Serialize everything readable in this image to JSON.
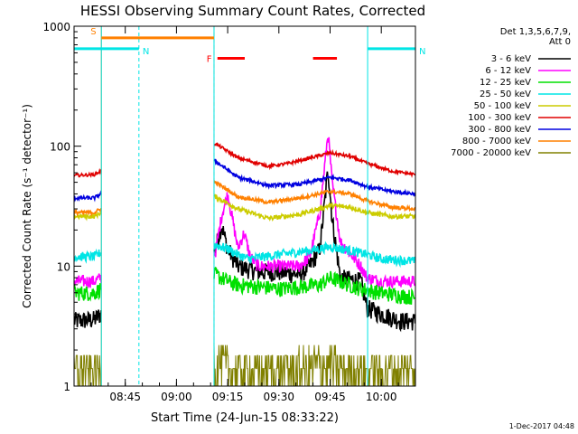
{
  "chart_data": {
    "type": "line",
    "title": "HESSI Observing Summary Count Rates, Corrected",
    "xlabel": "Start Time (24-Jun-15 08:33:22)",
    "ylabel": "Corrected Count Rate (s⁻¹ detector⁻¹)",
    "y_scale": "log",
    "ylim": [
      1,
      1000
    ],
    "xlim_minutes": [
      8.5,
      10.1667
    ],
    "x_ticks": [
      {
        "label": "08:45",
        "value": 8.75
      },
      {
        "label": "09:00",
        "value": 9.0
      },
      {
        "label": "09:15",
        "value": 9.25
      },
      {
        "label": "09:30",
        "value": 9.5
      },
      {
        "label": "09:45",
        "value": 9.75
      },
      {
        "label": "10:00",
        "value": 10.0
      }
    ],
    "y_ticks": [
      {
        "label": "1000",
        "value": 1000
      },
      {
        "label": "100",
        "value": 100
      },
      {
        "label": "10",
        "value": 10
      },
      {
        "label": "1",
        "value": 1
      }
    ],
    "legend": {
      "header": [
        "Det 1,3,5,6,7,9,",
        "Att 0"
      ],
      "placement": "right"
    },
    "flags": [
      {
        "label": "S",
        "color": "#ff8000",
        "level": 800,
        "x_start": 8.6333,
        "x_end": 9.1833
      },
      {
        "label": "N",
        "color": "#00e5e5",
        "level": 650,
        "x_start": 8.5,
        "x_end": 8.8167
      },
      {
        "label": "N",
        "color": "#00e5e5",
        "level": 650,
        "x_start": 9.9333,
        "x_end": 10.1667
      },
      {
        "label": "F",
        "color": "#ff0000",
        "level": 540,
        "x_start": 9.2,
        "x_end": 9.3333
      },
      {
        "label": "",
        "color": "#ff0000",
        "level": 540,
        "x_start": 9.6667,
        "x_end": 9.7833
      }
    ],
    "vertical_markers": [
      {
        "x": 8.6333,
        "color": "#ff8000",
        "style": "solid"
      },
      {
        "x": 8.6333,
        "color": "#00e5e5",
        "style": "solid"
      },
      {
        "x": 8.8167,
        "color": "#00e5e5",
        "style": "dashed"
      },
      {
        "x": 9.1833,
        "color": "#ff8000",
        "style": "dashed"
      },
      {
        "x": 9.1833,
        "color": "#00e5e5",
        "style": "solid"
      },
      {
        "x": 9.9333,
        "color": "#00e5e5",
        "style": "solid"
      },
      {
        "x": 10.1667,
        "color": "#00e5e5",
        "style": "dashed"
      }
    ],
    "gaps": [
      [
        8.6333,
        9.1833
      ]
    ],
    "series": [
      {
        "name": "3 - 6 keV",
        "color": "#000000",
        "noise": 0.06,
        "x": [
          8.5,
          8.6,
          8.63,
          9.19,
          9.22,
          9.25,
          9.3,
          9.35,
          9.4,
          9.5,
          9.6,
          9.65,
          9.7,
          9.72,
          9.74,
          9.76,
          9.8,
          9.9,
          9.93,
          10.0,
          10.1,
          10.1667
        ],
        "y": [
          3.5,
          3.6,
          4.0,
          14,
          22,
          14,
          10,
          9.5,
          9.0,
          9.0,
          8.5,
          10,
          14,
          30,
          65,
          25,
          8,
          7.5,
          4.5,
          4.0,
          3.5,
          3.5
        ]
      },
      {
        "name": "6 - 12 keV",
        "color": "#ff00ff",
        "noise": 0.04,
        "x": [
          8.5,
          8.6,
          8.63,
          9.19,
          9.22,
          9.25,
          9.3,
          9.33,
          9.36,
          9.4,
          9.5,
          9.6,
          9.65,
          9.7,
          9.72,
          9.74,
          9.76,
          9.8,
          9.9,
          9.93,
          10.0,
          10.1,
          10.1667
        ],
        "y": [
          7.5,
          7.5,
          8,
          13,
          26,
          40,
          14,
          19,
          12,
          10,
          10,
          10,
          12,
          28,
          60,
          130,
          50,
          16,
          10,
          8,
          7.5,
          7.5,
          7.5
        ]
      },
      {
        "name": "12 - 25 keV",
        "color": "#00e000",
        "noise": 0.05,
        "x": [
          8.5,
          8.6,
          8.63,
          9.19,
          9.25,
          9.3,
          9.5,
          9.7,
          9.75,
          9.9,
          10.0,
          10.1667
        ],
        "y": [
          6,
          6,
          6.5,
          8.5,
          7.5,
          7,
          6.5,
          7,
          8,
          6.5,
          6,
          5.5
        ]
      },
      {
        "name": "25 - 50 keV",
        "color": "#00e5e5",
        "noise": 0.03,
        "x": [
          8.5,
          8.6,
          8.63,
          9.19,
          9.25,
          9.3,
          9.35,
          9.5,
          9.65,
          9.75,
          9.85,
          9.93,
          10.0,
          10.1667
        ],
        "y": [
          12,
          12,
          13,
          15,
          14,
          12.5,
          11.5,
          12.5,
          13.5,
          14.5,
          13.5,
          12.5,
          11.5,
          11
        ]
      },
      {
        "name": "50 - 100 keV",
        "color": "#cccc00",
        "noise": 0.015,
        "x": [
          8.5,
          8.6,
          8.63,
          9.19,
          9.3,
          9.45,
          9.6,
          9.75,
          9.85,
          9.93,
          10.05,
          10.1667
        ],
        "y": [
          26,
          26,
          28,
          38,
          30,
          25,
          27,
          32,
          31,
          28,
          26,
          26
        ]
      },
      {
        "name": "100 - 300 keV",
        "color": "#e00000",
        "noise": 0.01,
        "x": [
          8.5,
          8.6,
          8.63,
          9.19,
          9.3,
          9.45,
          9.55,
          9.75,
          9.85,
          9.93,
          10.05,
          10.1667
        ],
        "y": [
          57,
          58,
          62,
          105,
          80,
          68,
          72,
          88,
          82,
          72,
          62,
          58
        ]
      },
      {
        "name": "300 - 800 keV",
        "color": "#0000e0",
        "noise": 0.012,
        "x": [
          8.5,
          8.6,
          8.63,
          9.19,
          9.3,
          9.45,
          9.6,
          9.75,
          9.85,
          9.93,
          10.05,
          10.1667
        ],
        "y": [
          37,
          37,
          40,
          75,
          55,
          47,
          48,
          55,
          52,
          46,
          42,
          40
        ]
      },
      {
        "name": "800 - 7000 keV",
        "color": "#ff8000",
        "noise": 0.012,
        "x": [
          8.5,
          8.6,
          8.63,
          9.19,
          9.3,
          9.45,
          9.6,
          9.75,
          9.85,
          9.93,
          10.05,
          10.1667
        ],
        "y": [
          28,
          28,
          30,
          50,
          38,
          34,
          37,
          42,
          40,
          35,
          31,
          30
        ]
      },
      {
        "name": "7000 - 20000 keV",
        "color": "#808000",
        "noise": 0.0,
        "quantized": true,
        "x": [
          8.5,
          8.6,
          8.63,
          9.19,
          9.3,
          9.5,
          9.7,
          9.9,
          10.1667
        ],
        "y": [
          1.8,
          1.8,
          1.8,
          2.6,
          1.8,
          1.8,
          2.2,
          1.8,
          1.8
        ]
      }
    ]
  },
  "footer": {
    "timestamp": "1-Dec-2017 04:48"
  }
}
